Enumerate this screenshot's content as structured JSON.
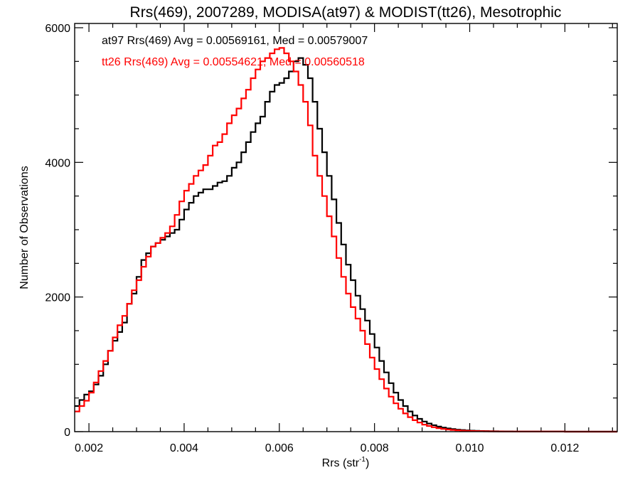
{
  "chart_data": {
    "type": "line",
    "title": "Rrs(469), 2007289, MODISA(at97) & MODIST(tt26), Mesotrophic",
    "xlabel_main": "Rrs (str",
    "xlabel_sup": "-1",
    "xlabel_close": ")",
    "ylabel": "Number of Observations",
    "xlim": [
      0.0017,
      0.0131
    ],
    "ylim": [
      0,
      6000
    ],
    "xticks": [
      {
        "value": 0.002,
        "label": "0.002"
      },
      {
        "value": 0.004,
        "label": "0.004"
      },
      {
        "value": 0.006,
        "label": "0.006"
      },
      {
        "value": 0.008,
        "label": "0.008"
      },
      {
        "value": 0.01,
        "label": "0.010"
      },
      {
        "value": 0.012,
        "label": "0.012"
      }
    ],
    "yticks": [
      {
        "value": 0,
        "label": "0"
      },
      {
        "value": 2000,
        "label": "2000"
      },
      {
        "value": 4000,
        "label": "4000"
      },
      {
        "value": 6000,
        "label": "6000"
      }
    ],
    "annotations": [
      {
        "text": "at97 Rrs(469) Avg = 0.00569161, Med = 0.00579007",
        "color": "#000000"
      },
      {
        "text": "tt26 Rrs(469) Avg = 0.00554621, Med = 0.00560518",
        "color": "#ff0000"
      }
    ],
    "series": [
      {
        "color": "#000000",
        "points": [
          [
            0.0017,
            380
          ],
          [
            0.0018,
            470
          ],
          [
            0.0019,
            550
          ],
          [
            0.002,
            600
          ],
          [
            0.0021,
            700
          ],
          [
            0.0022,
            830
          ],
          [
            0.0023,
            1000
          ],
          [
            0.0024,
            1200
          ],
          [
            0.0025,
            1350
          ],
          [
            0.0026,
            1480
          ],
          [
            0.0027,
            1620
          ],
          [
            0.0028,
            1900
          ],
          [
            0.0029,
            2050
          ],
          [
            0.003,
            2300
          ],
          [
            0.0031,
            2550
          ],
          [
            0.0032,
            2650
          ],
          [
            0.0033,
            2750
          ],
          [
            0.0034,
            2800
          ],
          [
            0.0035,
            2850
          ],
          [
            0.0036,
            2900
          ],
          [
            0.0037,
            2950
          ],
          [
            0.0038,
            3000
          ],
          [
            0.0039,
            3150
          ],
          [
            0.004,
            3300
          ],
          [
            0.0041,
            3400
          ],
          [
            0.0042,
            3500
          ],
          [
            0.0043,
            3550
          ],
          [
            0.0044,
            3600
          ],
          [
            0.0045,
            3600
          ],
          [
            0.0046,
            3650
          ],
          [
            0.0047,
            3700
          ],
          [
            0.0048,
            3720
          ],
          [
            0.0049,
            3800
          ],
          [
            0.005,
            3920
          ],
          [
            0.0051,
            4000
          ],
          [
            0.0052,
            4150
          ],
          [
            0.0053,
            4300
          ],
          [
            0.0054,
            4450
          ],
          [
            0.0055,
            4580
          ],
          [
            0.0056,
            4680
          ],
          [
            0.0057,
            4900
          ],
          [
            0.0058,
            5050
          ],
          [
            0.0059,
            5150
          ],
          [
            0.006,
            5180
          ],
          [
            0.0061,
            5250
          ],
          [
            0.0062,
            5350
          ],
          [
            0.0063,
            5500
          ],
          [
            0.0064,
            5550
          ],
          [
            0.0065,
            5450
          ],
          [
            0.0066,
            5250
          ],
          [
            0.0067,
            4900
          ],
          [
            0.0068,
            4500
          ],
          [
            0.0069,
            4150
          ],
          [
            0.007,
            3800
          ],
          [
            0.0071,
            3450
          ],
          [
            0.0072,
            3100
          ],
          [
            0.0073,
            2780
          ],
          [
            0.0074,
            2480
          ],
          [
            0.0075,
            2250
          ],
          [
            0.0076,
            2020
          ],
          [
            0.0077,
            1820
          ],
          [
            0.0078,
            1650
          ],
          [
            0.0079,
            1450
          ],
          [
            0.008,
            1250
          ],
          [
            0.0081,
            1050
          ],
          [
            0.0082,
            880
          ],
          [
            0.0083,
            720
          ],
          [
            0.0084,
            580
          ],
          [
            0.0085,
            470
          ],
          [
            0.0086,
            380
          ],
          [
            0.0087,
            300
          ],
          [
            0.0088,
            240
          ],
          [
            0.0089,
            190
          ],
          [
            0.009,
            150
          ],
          [
            0.0091,
            120
          ],
          [
            0.0092,
            95
          ],
          [
            0.0093,
            75
          ],
          [
            0.0094,
            60
          ],
          [
            0.0095,
            48
          ],
          [
            0.0096,
            38
          ],
          [
            0.0097,
            30
          ],
          [
            0.0098,
            24
          ],
          [
            0.0099,
            19
          ],
          [
            0.01,
            15
          ],
          [
            0.0101,
            12
          ],
          [
            0.0102,
            10
          ],
          [
            0.0103,
            8
          ],
          [
            0.0104,
            6
          ],
          [
            0.0105,
            5
          ],
          [
            0.0106,
            4
          ],
          [
            0.0107,
            3
          ],
          [
            0.0108,
            3
          ],
          [
            0.0109,
            2
          ],
          [
            0.011,
            2
          ],
          [
            0.0112,
            1
          ],
          [
            0.0115,
            1
          ],
          [
            0.012,
            0
          ],
          [
            0.0131,
            0
          ]
        ]
      },
      {
        "color": "#ff0000",
        "points": [
          [
            0.0017,
            300
          ],
          [
            0.0018,
            380
          ],
          [
            0.0019,
            460
          ],
          [
            0.002,
            580
          ],
          [
            0.0021,
            730
          ],
          [
            0.0022,
            900
          ],
          [
            0.0023,
            1050
          ],
          [
            0.0024,
            1200
          ],
          [
            0.0025,
            1400
          ],
          [
            0.0026,
            1580
          ],
          [
            0.0027,
            1720
          ],
          [
            0.0028,
            1900
          ],
          [
            0.0029,
            2100
          ],
          [
            0.003,
            2250
          ],
          [
            0.0031,
            2450
          ],
          [
            0.0032,
            2600
          ],
          [
            0.0033,
            2750
          ],
          [
            0.0034,
            2800
          ],
          [
            0.0035,
            2880
          ],
          [
            0.0036,
            2950
          ],
          [
            0.0037,
            3050
          ],
          [
            0.0038,
            3220
          ],
          [
            0.0039,
            3420
          ],
          [
            0.004,
            3580
          ],
          [
            0.0041,
            3680
          ],
          [
            0.0042,
            3800
          ],
          [
            0.0043,
            3880
          ],
          [
            0.0044,
            3960
          ],
          [
            0.0045,
            4100
          ],
          [
            0.0046,
            4250
          ],
          [
            0.0047,
            4300
          ],
          [
            0.0048,
            4420
          ],
          [
            0.0049,
            4580
          ],
          [
            0.005,
            4700
          ],
          [
            0.0051,
            4800
          ],
          [
            0.0052,
            4950
          ],
          [
            0.0053,
            5080
          ],
          [
            0.0054,
            5250
          ],
          [
            0.0055,
            5380
          ],
          [
            0.0056,
            5500
          ],
          [
            0.0057,
            5550
          ],
          [
            0.0058,
            5620
          ],
          [
            0.0059,
            5680
          ],
          [
            0.006,
            5700
          ],
          [
            0.0061,
            5620
          ],
          [
            0.0062,
            5500
          ],
          [
            0.0063,
            5350
          ],
          [
            0.0064,
            5150
          ],
          [
            0.0065,
            4900
          ],
          [
            0.0066,
            4550
          ],
          [
            0.0067,
            4100
          ],
          [
            0.0068,
            3800
          ],
          [
            0.0069,
            3500
          ],
          [
            0.007,
            3200
          ],
          [
            0.0071,
            2900
          ],
          [
            0.0072,
            2580
          ],
          [
            0.0073,
            2300
          ],
          [
            0.0074,
            2050
          ],
          [
            0.0075,
            1850
          ],
          [
            0.0076,
            1680
          ],
          [
            0.0077,
            1500
          ],
          [
            0.0078,
            1300
          ],
          [
            0.0079,
            1100
          ],
          [
            0.008,
            930
          ],
          [
            0.0081,
            780
          ],
          [
            0.0082,
            640
          ],
          [
            0.0083,
            520
          ],
          [
            0.0084,
            420
          ],
          [
            0.0085,
            340
          ],
          [
            0.0086,
            270
          ],
          [
            0.0087,
            215
          ],
          [
            0.0088,
            170
          ],
          [
            0.0089,
            135
          ],
          [
            0.009,
            105
          ],
          [
            0.0091,
            85
          ],
          [
            0.0092,
            65
          ],
          [
            0.0093,
            52
          ],
          [
            0.0094,
            40
          ],
          [
            0.0095,
            32
          ],
          [
            0.0096,
            25
          ],
          [
            0.0097,
            20
          ],
          [
            0.0098,
            15
          ],
          [
            0.0099,
            12
          ],
          [
            0.01,
            10
          ],
          [
            0.0101,
            8
          ],
          [
            0.0102,
            6
          ],
          [
            0.0103,
            5
          ],
          [
            0.0104,
            4
          ],
          [
            0.0105,
            3
          ],
          [
            0.0106,
            3
          ],
          [
            0.0107,
            2
          ],
          [
            0.0108,
            2
          ],
          [
            0.011,
            1
          ],
          [
            0.0115,
            1
          ],
          [
            0.012,
            0
          ],
          [
            0.0131,
            0
          ]
        ]
      }
    ]
  }
}
